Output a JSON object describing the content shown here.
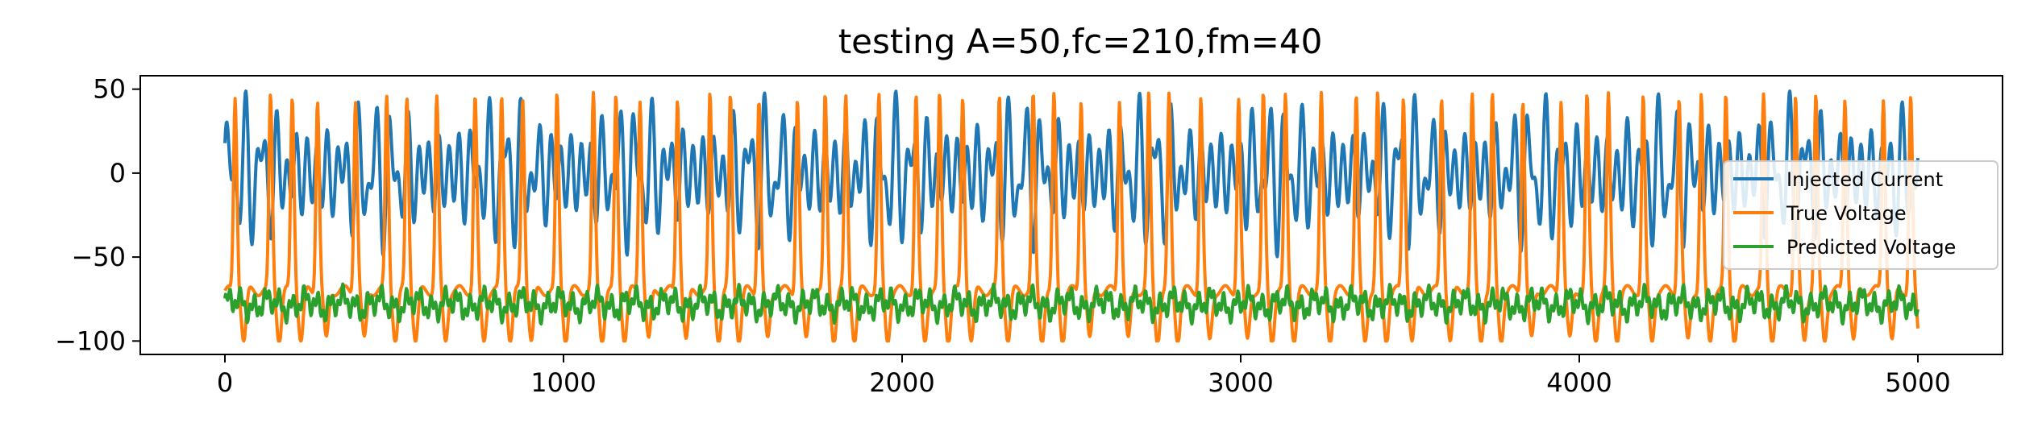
{
  "chart_data": {
    "type": "line",
    "title": "testing A=50,fc=210,fm=40",
    "xlabel": "",
    "ylabel": "",
    "xlim": [
      -250,
      5250
    ],
    "ylim": [
      -108,
      58
    ],
    "xticks": [
      0,
      1000,
      2000,
      3000,
      4000,
      5000
    ],
    "xtick_labels": [
      "0",
      "1000",
      "2000",
      "3000",
      "4000",
      "5000"
    ],
    "yticks": [
      50,
      0,
      -50,
      -100
    ],
    "ytick_labels": [
      "50",
      "0",
      "−50",
      "−100"
    ],
    "grid": false,
    "legend_position": "right",
    "series": [
      {
        "name": "Injected Current",
        "color": "#1f77b4",
        "amplitude": 50,
        "carrier_frequency": 210,
        "modulation_frequency": 40,
        "x_range": [
          0,
          5000
        ],
        "y_range": [
          -50,
          50
        ]
      },
      {
        "name": "True Voltage",
        "color": "#ff7f0e",
        "x_range": [
          0,
          5000
        ],
        "y_range": [
          -100,
          50
        ],
        "baseline": -70,
        "spike_peak": 45,
        "spike_count": 58
      },
      {
        "name": "Predicted Voltage",
        "color": "#2ca02c",
        "x_range": [
          0,
          5000
        ],
        "y_range": [
          -95,
          -65
        ],
        "mean": -78
      }
    ]
  }
}
